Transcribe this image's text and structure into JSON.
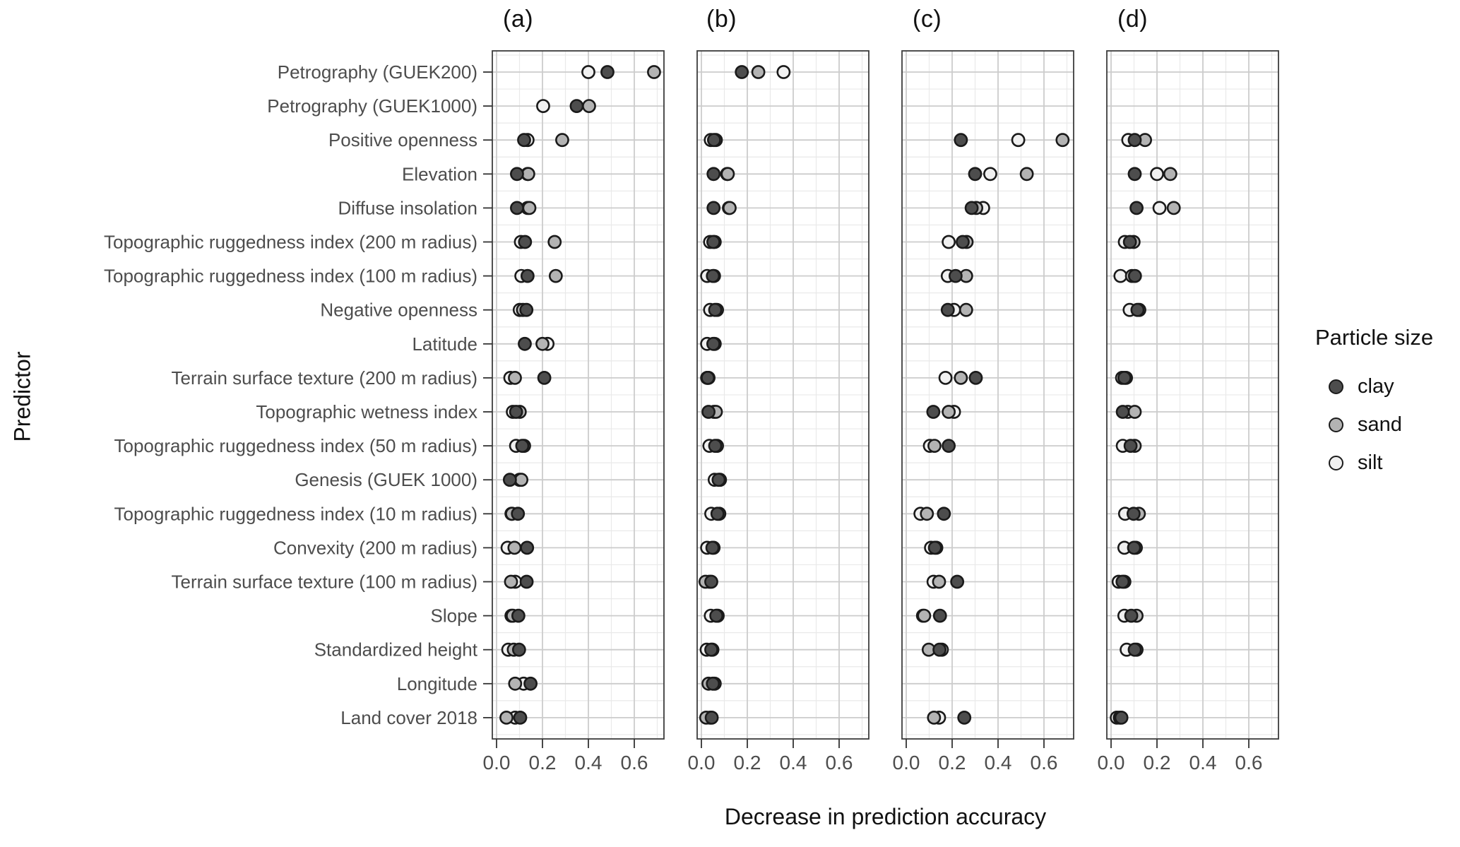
{
  "figure": {
    "legend": {
      "title": "Particle size",
      "entries": [
        {
          "label": "clay",
          "color": "#4d4d4d"
        },
        {
          "label": "sand",
          "color": "#b3b3b3"
        },
        {
          "label": "silt",
          "color": "#f0f0f0"
        }
      ]
    }
  },
  "chart_data": {
    "type": "scatter",
    "xlabel": "Decrease in prediction accuracy",
    "ylabel": "Predictor",
    "xlim": [
      -0.018,
      0.729
    ],
    "x_ticks": [
      0.0,
      0.2,
      0.4,
      0.6
    ],
    "x_tick_labels": [
      "0.0",
      "0.2",
      "0.4",
      "0.6"
    ],
    "grid": "major and minor, gray on white",
    "legend_position": "right",
    "point_outline": "#1a1a1a",
    "categories": [
      "Petrography (GUEK200)",
      "Petrography (GUEK1000)",
      "Positive openness",
      "Elevation",
      "Diffuse insolation",
      "Topographic ruggedness index (200 m radius)",
      "Topographic ruggedness index (100 m radius)",
      "Negative openness",
      "Latitude",
      "Terrain surface texture (200 m radius)",
      "Topographic wetness index",
      "Topographic ruggedness index (50 m radius)",
      "Genesis (GUEK 1000)",
      "Topographic ruggedness index (10 m radius)",
      "Convexity (200 m radius)",
      "Terrain surface texture (100 m radius)",
      "Slope",
      "Standardized height",
      "Longitude",
      "Land cover 2018"
    ],
    "panels": [
      {
        "label": "(a)",
        "series": [
          {
            "name": "silt",
            "color": "#f0f0f0",
            "values": [
              0.4,
              0.203,
              0.135,
              0.135,
              0.135,
              0.106,
              0.108,
              0.101,
              0.222,
              0.06,
              0.071,
              0.085,
              0.1,
              0.065,
              0.048,
              0.081,
              0.065,
              0.051,
              0.118,
              0.081
            ]
          },
          {
            "name": "sand",
            "color": "#b3b3b3",
            "values": [
              0.686,
              0.403,
              0.286,
              0.138,
              0.143,
              0.253,
              0.258,
              0.115,
              0.2,
              0.08,
              0.101,
              0.12,
              0.108,
              0.068,
              0.078,
              0.063,
              0.071,
              0.075,
              0.081,
              0.043
            ]
          },
          {
            "name": "clay",
            "color": "#4d4d4d",
            "values": [
              0.483,
              0.349,
              0.12,
              0.089,
              0.089,
              0.124,
              0.135,
              0.13,
              0.123,
              0.208,
              0.085,
              0.112,
              0.058,
              0.093,
              0.133,
              0.131,
              0.095,
              0.098,
              0.148,
              0.103
            ]
          }
        ]
      },
      {
        "label": "(b)",
        "series": [
          {
            "name": "silt",
            "color": "#f0f0f0",
            "values": [
              0.358,
              null,
              0.041,
              0.112,
              0.12,
              0.038,
              0.025,
              0.038,
              0.025,
              0.025,
              0.055,
              0.035,
              0.058,
              0.043,
              0.025,
              0.035,
              0.041,
              0.023,
              0.058,
              0.038
            ]
          },
          {
            "name": "sand",
            "color": "#b3b3b3",
            "values": [
              0.248,
              null,
              0.063,
              0.115,
              0.123,
              0.058,
              0.055,
              0.068,
              0.058,
              0.031,
              0.063,
              0.068,
              0.081,
              0.078,
              0.053,
              0.018,
              0.071,
              0.048,
              0.031,
              0.021
            ]
          },
          {
            "name": "clay",
            "color": "#4d4d4d",
            "values": [
              0.176,
              null,
              0.055,
              0.053,
              0.053,
              0.052,
              0.05,
              0.06,
              0.052,
              0.028,
              0.031,
              0.06,
              0.075,
              0.07,
              0.048,
              0.043,
              0.065,
              0.043,
              0.05,
              0.045
            ]
          }
        ]
      },
      {
        "label": "(c)",
        "series": [
          {
            "name": "silt",
            "color": "#f0f0f0",
            "values": [
              null,
              null,
              0.488,
              0.366,
              0.335,
              0.185,
              0.181,
              0.208,
              null,
              0.171,
              0.208,
              0.103,
              null,
              0.062,
              0.108,
              0.119,
              0.073,
              0.155,
              null,
              0.143
            ]
          },
          {
            "name": "sand",
            "color": "#b3b3b3",
            "values": [
              null,
              null,
              0.681,
              0.525,
              0.305,
              0.263,
              0.261,
              0.261,
              null,
              0.238,
              0.185,
              0.123,
              null,
              0.09,
              0.131,
              0.143,
              0.078,
              0.098,
              null,
              0.121
            ]
          },
          {
            "name": "clay",
            "color": "#4d4d4d",
            "values": [
              null,
              null,
              0.238,
              0.3,
              0.285,
              0.246,
              0.215,
              0.181,
              null,
              0.303,
              0.118,
              0.185,
              null,
              0.164,
              0.125,
              0.222,
              0.147,
              0.145,
              null,
              0.253
            ]
          }
        ]
      },
      {
        "label": "(d)",
        "series": [
          {
            "name": "silt",
            "color": "#f0f0f0",
            "values": [
              null,
              null,
              0.075,
              0.2,
              0.211,
              0.06,
              0.041,
              0.081,
              null,
              0.048,
              0.073,
              0.051,
              null,
              0.061,
              0.058,
              0.033,
              0.058,
              0.068,
              null,
              0.025
            ]
          },
          {
            "name": "sand",
            "color": "#b3b3b3",
            "values": [
              null,
              null,
              0.148,
              0.258,
              0.273,
              0.098,
              0.091,
              0.123,
              null,
              0.065,
              0.103,
              0.103,
              null,
              0.121,
              0.108,
              0.058,
              0.111,
              0.111,
              null,
              0.038
            ]
          },
          {
            "name": "clay",
            "color": "#4d4d4d",
            "values": [
              null,
              null,
              0.103,
              0.103,
              0.111,
              0.082,
              0.104,
              0.115,
              null,
              0.058,
              0.051,
              0.085,
              null,
              0.098,
              0.1,
              0.05,
              0.088,
              0.103,
              null,
              0.045
            ]
          }
        ]
      }
    ]
  }
}
